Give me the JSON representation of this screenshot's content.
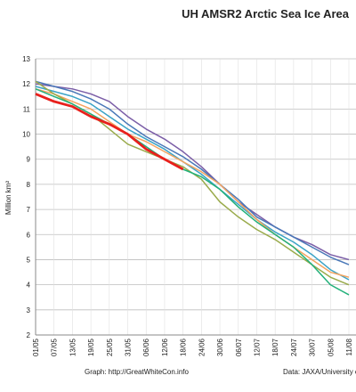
{
  "chart_data": {
    "type": "line",
    "title": "UH AMSR2 Arctic Sea Ice Area",
    "y_label": "Million km²",
    "footer_left": "Graph: http://GreatWhiteCon.info",
    "footer_right": "Data: JAXA/University of Illinois",
    "x": [
      0,
      6,
      12,
      18,
      24,
      30,
      36,
      42,
      48,
      54,
      60,
      66,
      72,
      78,
      84,
      90,
      96,
      102
    ],
    "xlim": [
      0,
      102
    ],
    "xticks": [
      {
        "value": 0,
        "label": "01/05"
      },
      {
        "value": 6,
        "label": "07/05"
      },
      {
        "value": 12,
        "label": "13/05"
      },
      {
        "value": 18,
        "label": "19/05"
      },
      {
        "value": 24,
        "label": "25/05"
      },
      {
        "value": 30,
        "label": "31/05"
      },
      {
        "value": 36,
        "label": "06/06"
      },
      {
        "value": 42,
        "label": "12/06"
      },
      {
        "value": 48,
        "label": "18/06"
      },
      {
        "value": 54,
        "label": "24/06"
      },
      {
        "value": 60,
        "label": "30/06"
      },
      {
        "value": 66,
        "label": "06/07"
      },
      {
        "value": 72,
        "label": "12/07"
      },
      {
        "value": 78,
        "label": "18/07"
      },
      {
        "value": 84,
        "label": "24/07"
      },
      {
        "value": 90,
        "label": "30/07"
      },
      {
        "value": 96,
        "label": "05/08"
      },
      {
        "value": 102,
        "label": "11/08"
      }
    ],
    "ylim": [
      2,
      13
    ],
    "yticks": [
      2,
      3,
      4,
      5,
      6,
      7,
      8,
      9,
      10,
      11,
      12,
      13
    ],
    "grid": true,
    "series": [
      {
        "color": "#7b5ea7",
        "width": 1.5,
        "values": [
          12.0,
          11.9,
          11.8,
          11.6,
          11.3,
          10.7,
          10.2,
          9.8,
          9.3,
          8.7,
          8.0,
          7.3,
          6.8,
          6.3,
          5.9,
          5.6,
          5.2,
          5.0
        ]
      },
      {
        "color": "#4a78b8",
        "width": 1.5,
        "values": [
          12.1,
          11.9,
          11.7,
          11.4,
          11.0,
          10.4,
          9.9,
          9.5,
          9.1,
          8.6,
          8.0,
          7.4,
          6.7,
          6.3,
          5.9,
          5.5,
          5.1,
          4.8
        ]
      },
      {
        "color": "#3ba3c7",
        "width": 1.5,
        "values": [
          11.9,
          11.7,
          11.5,
          11.2,
          10.7,
          10.2,
          9.8,
          9.4,
          8.9,
          8.4,
          7.8,
          7.2,
          6.6,
          6.1,
          5.7,
          5.2,
          4.6,
          4.2
        ]
      },
      {
        "color": "#f4a460",
        "width": 1.5,
        "values": [
          11.8,
          11.6,
          11.3,
          11.0,
          10.5,
          10.0,
          9.7,
          9.3,
          8.9,
          8.5,
          8.0,
          7.3,
          6.6,
          6.0,
          5.5,
          5.0,
          4.5,
          4.3
        ]
      },
      {
        "color": "#9aab4c",
        "width": 1.5,
        "values": [
          12.1,
          11.6,
          11.2,
          10.8,
          10.2,
          9.6,
          9.3,
          9.0,
          8.7,
          8.2,
          7.3,
          6.7,
          6.2,
          5.8,
          5.3,
          4.8,
          4.3,
          4.0
        ]
      },
      {
        "color": "#22b07a",
        "width": 1.5,
        "values": [
          11.8,
          11.5,
          11.2,
          10.8,
          10.4,
          10.0,
          9.5,
          9.0,
          8.6,
          8.3,
          7.8,
          7.1,
          6.5,
          6.0,
          5.5,
          4.8,
          4.0,
          3.6
        ]
      },
      {
        "color": "#e8201c",
        "width": 2.8,
        "values": [
          11.6,
          11.3,
          11.1,
          10.7,
          10.4,
          10.0,
          9.4,
          9.0,
          8.6,
          null,
          null,
          null,
          null,
          null,
          null,
          null,
          null,
          null
        ]
      }
    ]
  }
}
